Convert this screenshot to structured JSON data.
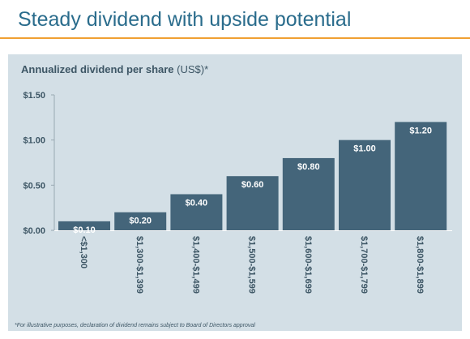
{
  "header": {
    "title": "Steady dividend with upside potential"
  },
  "colors": {
    "title": "#2a6c8c",
    "accent_rule": "#f0a032",
    "panel": "#d3dfe6",
    "bar": "#44657a",
    "text": "#3d5665"
  },
  "chart_data": {
    "type": "bar",
    "title_bold": "Annualized dividend per share",
    "title_unit": " (US$)*",
    "categories": [
      "<$1,300",
      "$1,300-$1,399",
      "$1,400-$1,499",
      "$1,500-$1,599",
      "$1,600-$1,699",
      "$1,700-$1,799",
      "$1,800-$1,899"
    ],
    "values": [
      0.1,
      0.2,
      0.4,
      0.6,
      0.8,
      1.0,
      1.2
    ],
    "data_labels": [
      "$0.10",
      "$0.20",
      "$0.40",
      "$0.60",
      "$0.80",
      "$1.00",
      "$1.20"
    ],
    "yticks": [
      0,
      0.5,
      1.0,
      1.5
    ],
    "ytick_labels": [
      "$0.00",
      "$0.50",
      "$1.00",
      "$1.50"
    ],
    "ylim": [
      0,
      1.5
    ],
    "xlabel": "",
    "ylabel": "",
    "grid": false,
    "legend": "none"
  },
  "footnote": "*For illustrative purposes, declaration of dividend remains subject to Board of Directors approval"
}
